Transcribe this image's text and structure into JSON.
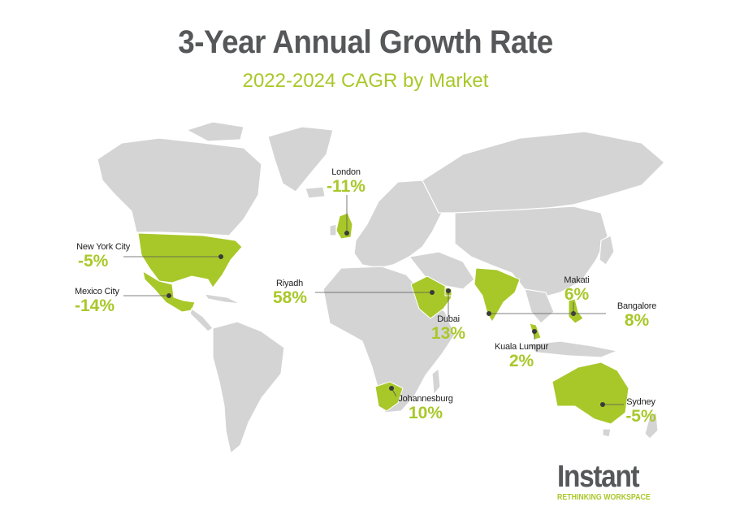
{
  "title": "3-Year Annual Growth Rate",
  "subtitle": "2022-2024 CAGR by Market",
  "colors": {
    "highlight": "#a8c82a",
    "land": "#d4d4d4",
    "title": "#555759"
  },
  "markets": [
    {
      "city": "London",
      "value": "-11%"
    },
    {
      "city": "New York City",
      "value": "-5%"
    },
    {
      "city": "Mexico City",
      "value": "-14%"
    },
    {
      "city": "Riyadh",
      "value": "58%"
    },
    {
      "city": "Dubai",
      "value": "13%"
    },
    {
      "city": "Makati",
      "value": "6%"
    },
    {
      "city": "Bangalore",
      "value": "8%"
    },
    {
      "city": "Kuala Lumpur",
      "value": "2%"
    },
    {
      "city": "Johannesburg",
      "value": "10%"
    },
    {
      "city": "Sydney",
      "value": "-5%"
    }
  ],
  "logo": {
    "name": "Instant",
    "tagline": "RETHINKING WORKSPACE"
  }
}
